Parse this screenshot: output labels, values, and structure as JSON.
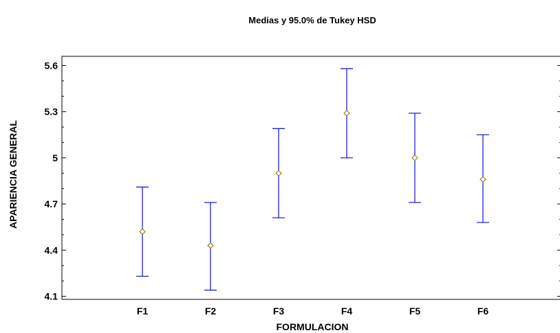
{
  "chart_data": {
    "type": "scatter",
    "title": "Medias y 95.0% de Tukey HSD",
    "xlabel": "FORMULACION",
    "ylabel": "APARIENCIA GENERAL",
    "categories": [
      "F1",
      "F2",
      "F3",
      "F4",
      "F5",
      "F6"
    ],
    "series": [
      {
        "means": [
          4.52,
          4.43,
          4.9,
          5.29,
          5.0,
          4.86
        ],
        "lower": [
          4.23,
          4.14,
          4.61,
          5.0,
          4.71,
          4.58
        ],
        "upper": [
          4.81,
          4.71,
          5.19,
          5.58,
          5.29,
          5.15
        ]
      }
    ],
    "yticks": [
      "4.1",
      "4.4",
      "4.7",
      "5",
      "5.3",
      "5.6"
    ],
    "ylim": [
      4.08,
      5.66
    ],
    "grid": false,
    "colors": {
      "interval": "#1f1fd8",
      "marker": "#8a7a10",
      "axis": "#000000"
    }
  }
}
